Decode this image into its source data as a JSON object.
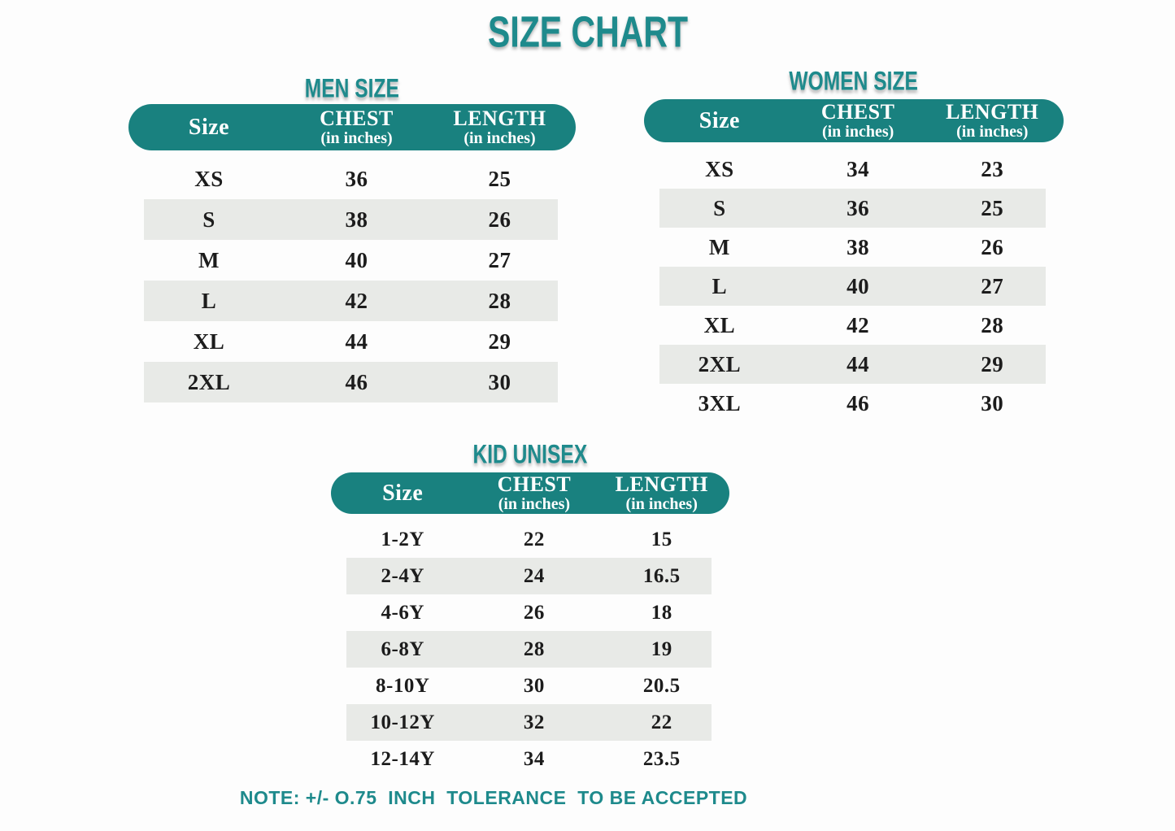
{
  "page": {
    "title": "SIZE CHART",
    "note": "NOTE: +/- O.75  INCH  TOLERANCE  TO BE ACCEPTED"
  },
  "colors": {
    "accent": "#1e8a8c",
    "pill_background": "#19817f",
    "row_stripe": "#e8eae7",
    "table_text": "#1c1c1c"
  },
  "chart_data": [
    {
      "type": "table",
      "id": "men",
      "title": "MEN SIZE",
      "columns": [
        "Size",
        "CHEST",
        "LENGTH"
      ],
      "column_subs": [
        "",
        "(in inches)",
        "(in inches)"
      ],
      "rows": [
        [
          "XS",
          "36",
          "25"
        ],
        [
          "S",
          "38",
          "26"
        ],
        [
          "M",
          "40",
          "27"
        ],
        [
          "L",
          "42",
          "28"
        ],
        [
          "XL",
          "44",
          "29"
        ],
        [
          "2XL",
          "46",
          "30"
        ]
      ]
    },
    {
      "type": "table",
      "id": "women",
      "title": "WOMEN SIZE",
      "columns": [
        "Size",
        "CHEST",
        "LENGTH"
      ],
      "column_subs": [
        "",
        "(in inches)",
        "(in inches)"
      ],
      "rows": [
        [
          "XS",
          "34",
          "23"
        ],
        [
          "S",
          "36",
          "25"
        ],
        [
          "M",
          "38",
          "26"
        ],
        [
          "L",
          "40",
          "27"
        ],
        [
          "XL",
          "42",
          "28"
        ],
        [
          "2XL",
          "44",
          "29"
        ],
        [
          "3XL",
          "46",
          "30"
        ]
      ]
    },
    {
      "type": "table",
      "id": "kid",
      "title": "KID UNISEX",
      "columns": [
        "Size",
        "CHEST",
        "LENGTH"
      ],
      "column_subs": [
        "",
        "(in inches)",
        "(in inches)"
      ],
      "rows": [
        [
          "1-2Y",
          "22",
          "15"
        ],
        [
          "2-4Y",
          "24",
          "16.5"
        ],
        [
          "4-6Y",
          "26",
          "18"
        ],
        [
          "6-8Y",
          "28",
          "19"
        ],
        [
          "8-10Y",
          "30",
          "20.5"
        ],
        [
          "10-12Y",
          "32",
          "22"
        ],
        [
          "12-14Y",
          "34",
          "23.5"
        ]
      ]
    }
  ]
}
